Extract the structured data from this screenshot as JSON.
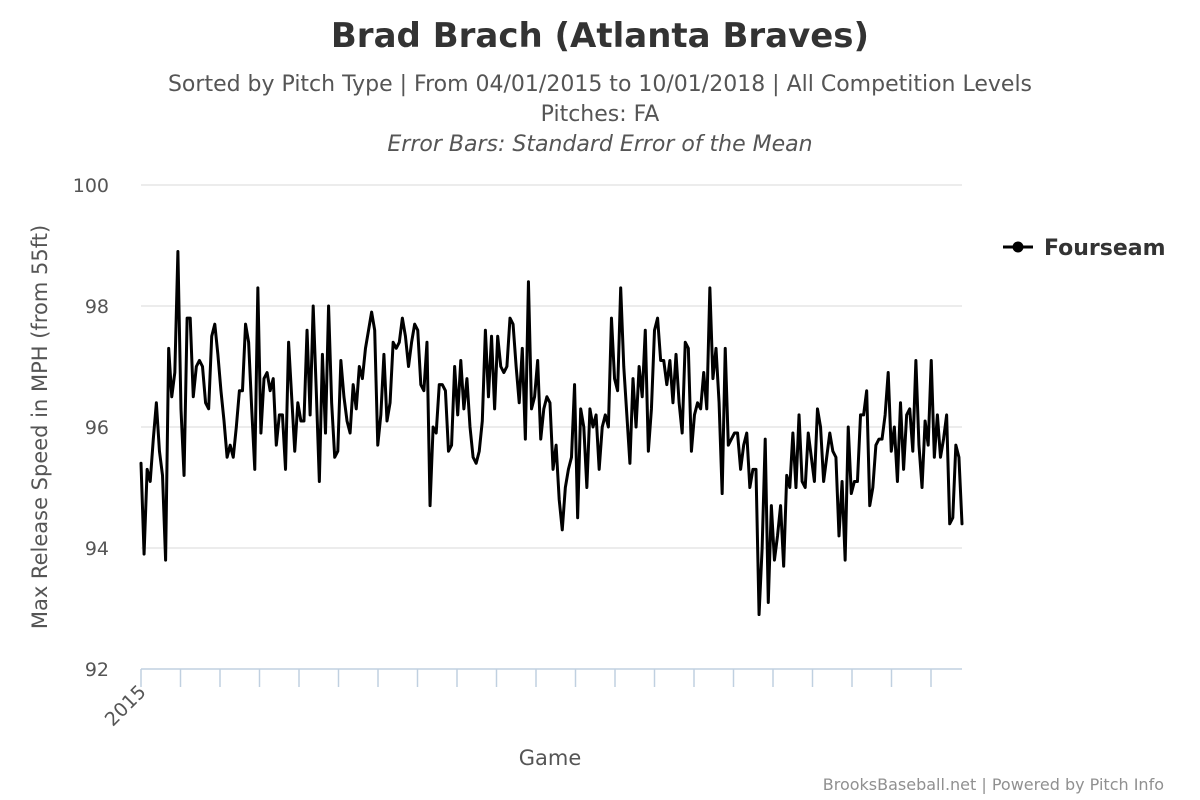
{
  "chart_data": {
    "type": "line",
    "title": "Brad Brach (Atlanta Braves)",
    "subtitle_lines": [
      "Sorted by Pitch Type | From 04/01/2015 to 10/01/2018 | All Competition Levels",
      "Pitches: FA"
    ],
    "subtitle_italic": "Error Bars: Standard Error of the Mean",
    "xlabel": "Game",
    "ylabel": "Max Release Speed in MPH (from 55ft)",
    "x_tick_labels": [
      "2015"
    ],
    "ylim": [
      92,
      100
    ],
    "y_ticks": [
      92,
      94,
      96,
      98,
      100
    ],
    "grid": true,
    "legend": "right",
    "series": [
      {
        "name": "Fourseam",
        "color": "#000000",
        "values": [
          95.4,
          93.9,
          95.3,
          95.1,
          95.8,
          96.4,
          95.6,
          95.2,
          93.8,
          97.3,
          96.5,
          96.9,
          98.9,
          96.3,
          95.2,
          97.8,
          97.8,
          96.5,
          97.0,
          97.1,
          97.0,
          96.4,
          96.3,
          97.5,
          97.7,
          97.2,
          96.6,
          96.1,
          95.5,
          95.7,
          95.5,
          96.0,
          96.6,
          96.6,
          97.7,
          97.4,
          96.3,
          95.3,
          98.3,
          95.9,
          96.8,
          96.9,
          96.6,
          96.8,
          95.7,
          96.2,
          96.2,
          95.3,
          97.4,
          96.5,
          95.6,
          96.4,
          96.1,
          96.1,
          97.6,
          96.2,
          98.0,
          96.6,
          95.1,
          97.2,
          95.9,
          98.0,
          96.4,
          95.5,
          95.6,
          97.1,
          96.5,
          96.1,
          95.9,
          96.7,
          96.3,
          97.0,
          96.8,
          97.3,
          97.6,
          97.9,
          97.6,
          95.7,
          96.2,
          97.2,
          96.1,
          96.4,
          97.4,
          97.3,
          97.4,
          97.8,
          97.5,
          97.0,
          97.4,
          97.7,
          97.6,
          96.7,
          96.6,
          97.4,
          94.7,
          96.0,
          95.9,
          96.7,
          96.7,
          96.6,
          95.6,
          95.7,
          97.0,
          96.2,
          97.1,
          96.3,
          96.8,
          96.0,
          95.5,
          95.4,
          95.6,
          96.1,
          97.6,
          96.5,
          97.5,
          96.3,
          97.5,
          97.0,
          96.9,
          97.0,
          97.8,
          97.7,
          97.0,
          96.4,
          97.3,
          95.8,
          98.4,
          96.3,
          96.5,
          97.1,
          95.8,
          96.3,
          96.5,
          96.4,
          95.3,
          95.7,
          94.8,
          94.3,
          95.0,
          95.3,
          95.5,
          96.7,
          94.5,
          96.3,
          96.0,
          95.0,
          96.3,
          96.0,
          96.2,
          95.3,
          96.0,
          96.2,
          96.0,
          97.8,
          96.8,
          96.6,
          98.3,
          97.0,
          96.2,
          95.4,
          96.8,
          96.0,
          97.0,
          96.5,
          97.6,
          95.6,
          96.3,
          97.6,
          97.8,
          97.1,
          97.1,
          96.7,
          97.1,
          96.4,
          97.2,
          96.4,
          95.9,
          97.4,
          97.3,
          95.6,
          96.2,
          96.4,
          96.3,
          96.9,
          96.3,
          98.3,
          96.8,
          97.3,
          96.4,
          94.9,
          97.3,
          95.7,
          95.8,
          95.9,
          95.9,
          95.3,
          95.7,
          95.9,
          95.0,
          95.3,
          95.3,
          92.9,
          94.0,
          95.8,
          93.1,
          94.7,
          93.8,
          94.2,
          94.7,
          93.7,
          95.2,
          95.0,
          95.9,
          95.0,
          96.2,
          95.1,
          95.0,
          95.9,
          95.5,
          95.1,
          96.3,
          96.0,
          95.1,
          95.5,
          95.9,
          95.6,
          95.5,
          94.2,
          95.1,
          93.8,
          96.0,
          94.9,
          95.1,
          95.1,
          96.2,
          96.2,
          96.6,
          94.7,
          95.0,
          95.7,
          95.8,
          95.8,
          96.2,
          96.9,
          95.6,
          96.0,
          95.1,
          96.4,
          95.3,
          96.2,
          96.3,
          95.6,
          97.1,
          95.7,
          95.0,
          96.1,
          95.7,
          97.1,
          95.5,
          96.2,
          95.5,
          95.8,
          96.2,
          94.4,
          94.5,
          95.7,
          95.5,
          94.4
        ]
      }
    ]
  },
  "credits": "BrooksBaseball.net | Powered by Pitch Info"
}
